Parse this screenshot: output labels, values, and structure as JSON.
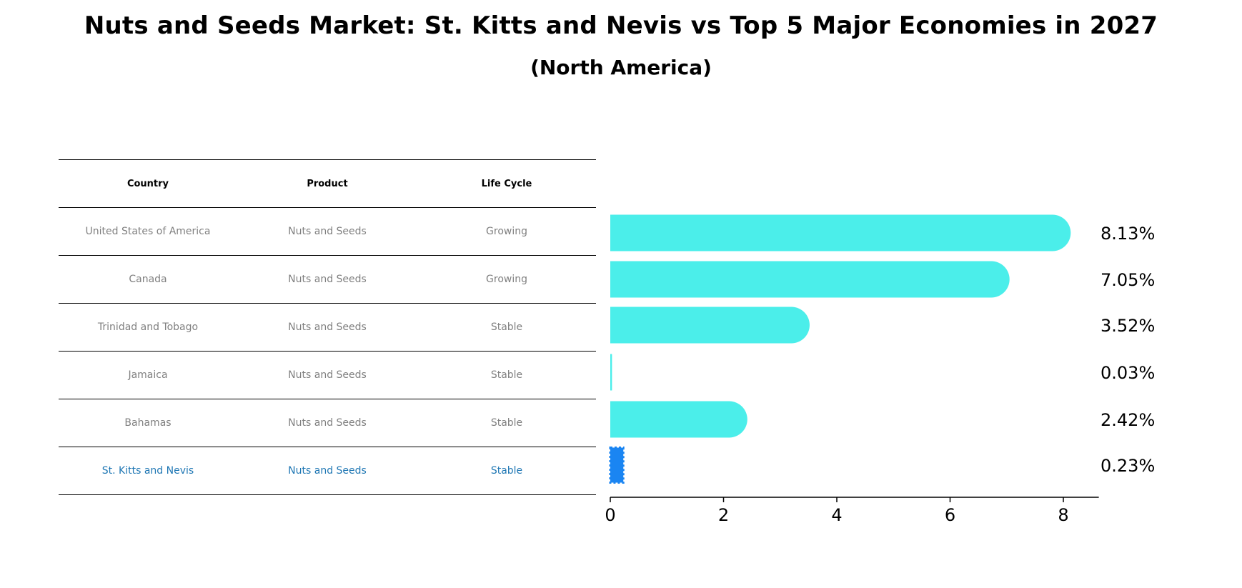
{
  "title": "Nuts and Seeds Market: St. Kitts and Nevis vs Top 5 Major Economies in 2027",
  "subtitle": "(North America)",
  "table": {
    "headers": [
      "Country",
      "Product",
      "Life Cycle"
    ],
    "rows": [
      {
        "country": "United States of America",
        "product": "Nuts and Seeds",
        "life_cycle": "Growing"
      },
      {
        "country": "Canada",
        "product": "Nuts and Seeds",
        "life_cycle": "Growing"
      },
      {
        "country": "Trinidad and Tobago",
        "product": "Nuts and Seeds",
        "life_cycle": "Stable"
      },
      {
        "country": "Jamaica",
        "product": "Nuts and Seeds",
        "life_cycle": "Stable"
      },
      {
        "country": "Bahamas",
        "product": "Nuts and Seeds",
        "life_cycle": "Stable"
      },
      {
        "country": "St. Kitts and Nevis",
        "product": "Nuts and Seeds",
        "life_cycle": "Stable"
      }
    ]
  },
  "colors": {
    "bar": "#4beeea",
    "highlight_bar": "#1a85f2",
    "highlight_text": "#1f77b4",
    "row_text": "#808080"
  },
  "chart_data": {
    "type": "bar",
    "orientation": "horizontal",
    "categories": [
      "United States of America",
      "Canada",
      "Trinidad and Tobago",
      "Jamaica",
      "Bahamas",
      "St. Kitts and Nevis"
    ],
    "values": [
      8.13,
      7.05,
      3.52,
      0.03,
      2.42,
      0.23
    ],
    "value_labels": [
      "8.13%",
      "7.05%",
      "3.52%",
      "0.03%",
      "2.42%",
      "0.23%"
    ],
    "highlight_index": 5,
    "xlim": [
      0,
      8.5
    ],
    "xticks": [
      0,
      2,
      4,
      6,
      8
    ]
  }
}
